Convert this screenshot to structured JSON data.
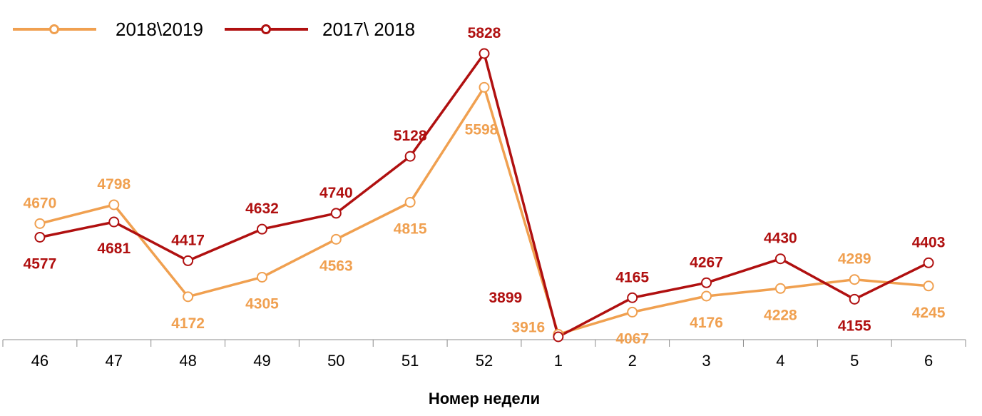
{
  "chart_data": {
    "type": "line",
    "categories": [
      "46",
      "47",
      "48",
      "49",
      "50",
      "51",
      "52",
      "1",
      "2",
      "3",
      "4",
      "5",
      "6"
    ],
    "series": [
      {
        "name": "2018\\2019",
        "color": "#F0A050",
        "values": [
          4670,
          4798,
          4172,
          4305,
          4563,
          4815,
          5598,
          3916,
          4067,
          4176,
          4228,
          4289,
          4245
        ]
      },
      {
        "name": "2017\\ 2018",
        "color": "#B01010",
        "values": [
          4577,
          4681,
          4417,
          4632,
          4740,
          5128,
          5828,
          3899,
          4165,
          4267,
          4430,
          4155,
          4403
        ]
      }
    ],
    "xlabel": "Номер недели",
    "ylabel": "",
    "ylim": [
      3899,
      5828
    ],
    "grid": false,
    "legend": "top-left"
  }
}
